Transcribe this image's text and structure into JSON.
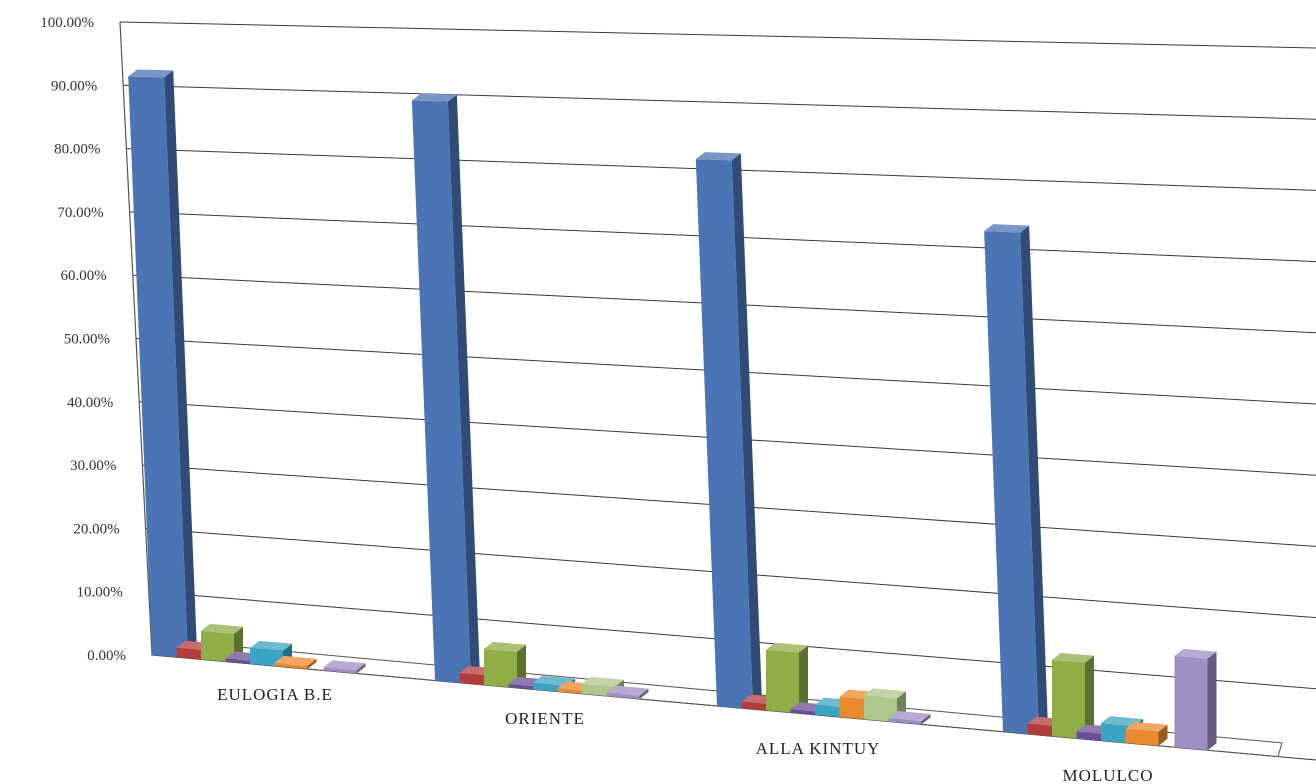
{
  "chart_data": {
    "type": "bar",
    "title": "",
    "xlabel": "",
    "ylabel": "",
    "ylim": [
      0,
      100
    ],
    "y_ticks": [
      "0.00%",
      "10.00%",
      "20.00%",
      "30.00%",
      "40.00%",
      "50.00%",
      "60.00%",
      "70.00%",
      "80.00%",
      "90.00%",
      "100.00%"
    ],
    "categories": [
      "EULOGIA B.E",
      "ORIENTE",
      "ALLA KINTUY",
      "MOLULCO"
    ],
    "grid": true,
    "legend": "none",
    "series": [
      {
        "color": "#4a74b4",
        "values": [
          91.5,
          89.0,
          81.5,
          72.5
        ]
      },
      {
        "color": "#b43c3a",
        "values": [
          1.5,
          1.5,
          1.0,
          1.5
        ]
      },
      {
        "color": "#8fae48",
        "values": [
          4.5,
          5.5,
          9.0,
          11.0
        ]
      },
      {
        "color": "#6a4e96",
        "values": [
          0.5,
          0.5,
          0.5,
          1.0
        ]
      },
      {
        "color": "#3ba4c2",
        "values": [
          2.5,
          1.0,
          1.5,
          2.5
        ]
      },
      {
        "color": "#ea8a2e",
        "values": [
          0.5,
          0.5,
          3.0,
          2.0
        ]
      },
      {
        "color": "#aec78a",
        "values": [
          0.0,
          1.5,
          3.5,
          0.0
        ]
      },
      {
        "color": "#9c8fc4",
        "values": [
          0.5,
          0.5,
          0.5,
          13.0
        ]
      }
    ]
  }
}
